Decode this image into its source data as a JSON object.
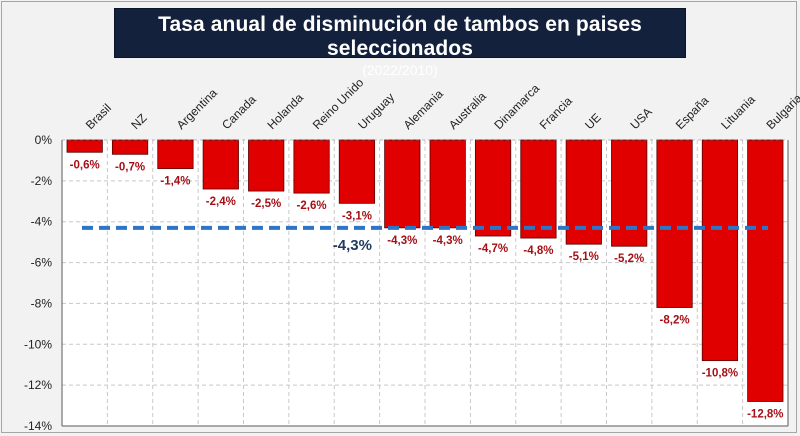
{
  "chart_data": {
    "type": "bar",
    "title": "Tasa anual de disminución de tambos en paises seleccionados",
    "subtitle": "(2022/2010)",
    "xlabel": "",
    "ylabel": "",
    "categories": [
      "Brasil",
      "NZ",
      "Argentina",
      "Canada",
      "Holanda",
      "Reino Unido",
      "Uruguay",
      "Alemania",
      "Australia",
      "Dinamarca",
      "Francia",
      "UE",
      "USA",
      "España",
      "Lituania",
      "Bulgaria"
    ],
    "values": [
      -0.6,
      -0.7,
      -1.4,
      -2.4,
      -2.5,
      -2.6,
      -3.1,
      -4.3,
      -4.3,
      -4.7,
      -4.8,
      -5.1,
      -5.2,
      -8.2,
      -10.8,
      -12.8
    ],
    "data_labels": [
      "-0,6%",
      "-0,7%",
      "-1,4%",
      "-2,4%",
      "-2,5%",
      "-2,6%",
      "-3,1%",
      "-4,3%",
      "-4,3%",
      "-4,7%",
      "-4,8%",
      "-5,1%",
      "-5,2%",
      "-8,2%",
      "-10,8%",
      "-12,8%"
    ],
    "ylim": [
      -14,
      0
    ],
    "yticks": [
      0,
      -2,
      -4,
      -6,
      -8,
      -10,
      -12,
      -14
    ],
    "ytick_labels": [
      "0%",
      "-2%",
      "-4%",
      "-6%",
      "-8%",
      "-10%",
      "-12%",
      "-14%"
    ],
    "grid": true,
    "average_line": {
      "value": -4.3,
      "label": "-4,3%",
      "style": "dashed"
    },
    "colors": {
      "bar": "#e00000",
      "bar_border": "#5a0000",
      "average": "#2e75c6",
      "label": "#a50f15",
      "avg_label": "#1f3a5f",
      "title_bg": "#14213d"
    }
  }
}
